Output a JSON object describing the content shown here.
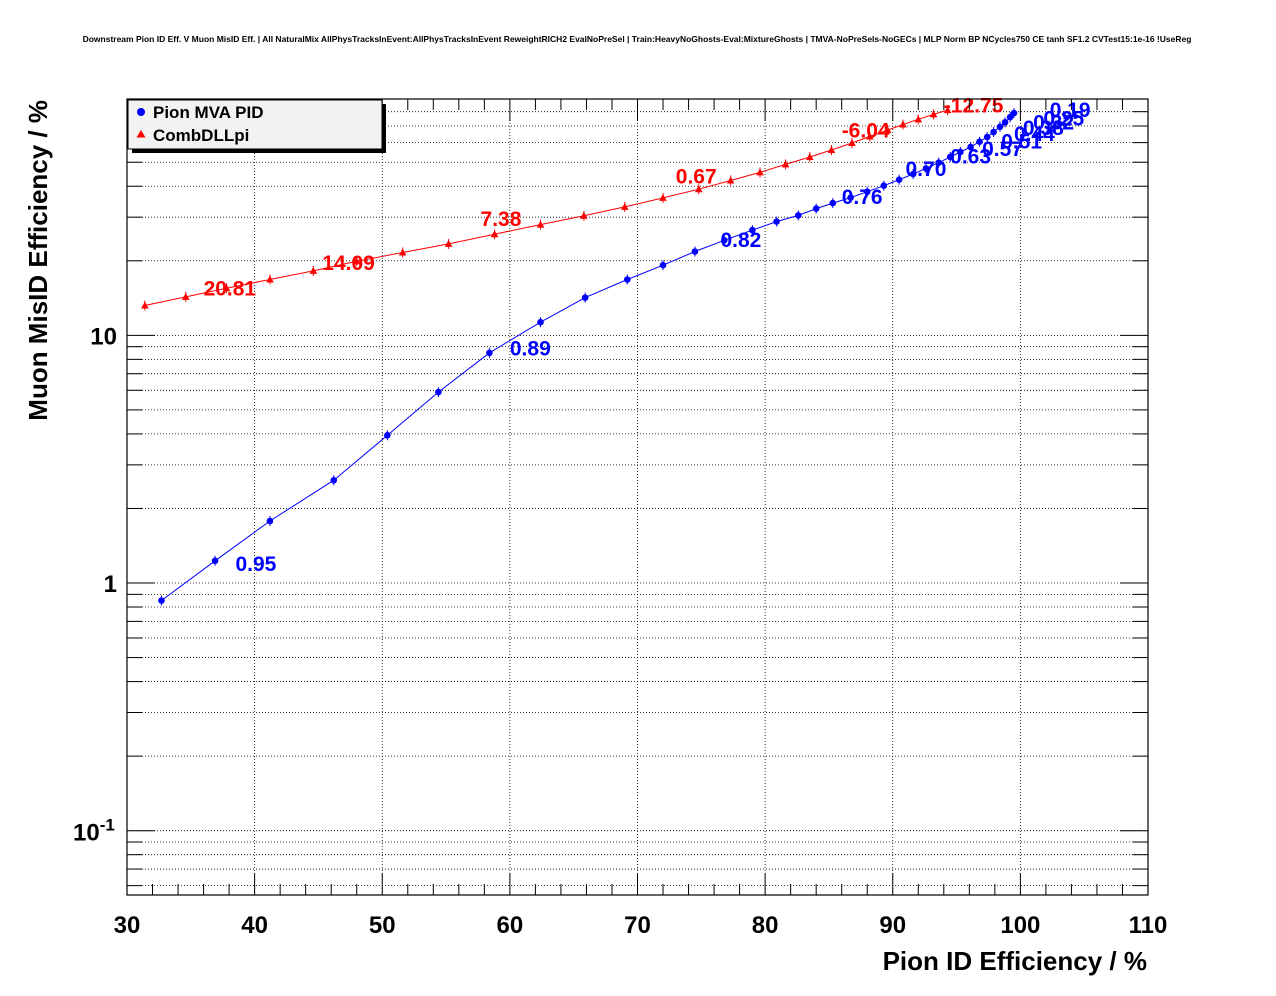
{
  "chart_data": {
    "type": "line",
    "title": "Downstream Pion ID Eff. V Muon MisID Eff. | All NaturalMix AllPhysTracksInEvent:AllPhysTracksInEvent ReweightRICH2 EvalNoPreSel | Train:HeavyNoGhosts-Eval:MixtureGhosts | TMVA-NoPreSels-NoGECs | MLP Norm BP NCycles750 CE tanh SF1.2 CVTest15:1e-16 !UseReg",
    "xlabel": "Pion ID Efficiency / %",
    "ylabel": "Muon MisID Efficiency / %",
    "xlim": [
      30,
      110
    ],
    "ylim": [
      0.055,
      90
    ],
    "yscale": "log",
    "grid": true,
    "legend_position": "top-left",
    "x_ticks": [
      "30",
      "40",
      "50",
      "60",
      "70",
      "80",
      "90",
      "100",
      "110"
    ],
    "y_ticks": [
      {
        "value": 1,
        "label": "1"
      },
      {
        "value": 10,
        "label": "10"
      }
    ],
    "y_tick_exp": {
      "value": 0.1,
      "base": "10",
      "exp": "-1"
    },
    "series": [
      {
        "name": "Pion MVA PID",
        "color": "#0000ff",
        "marker": "circle",
        "points": [
          [
            32.7,
            0.85
          ],
          [
            36.9,
            1.23
          ],
          [
            41.2,
            1.78
          ],
          [
            46.2,
            2.6
          ],
          [
            50.4,
            3.95
          ],
          [
            54.4,
            5.9
          ],
          [
            58.4,
            8.5
          ],
          [
            62.4,
            11.3
          ],
          [
            65.9,
            14.2
          ],
          [
            69.2,
            16.8
          ],
          [
            72.0,
            19.2
          ],
          [
            74.5,
            21.8
          ],
          [
            76.8,
            24.2
          ],
          [
            79.0,
            26.6
          ],
          [
            80.9,
            28.8
          ],
          [
            82.6,
            30.5
          ],
          [
            84.0,
            32.5
          ],
          [
            85.3,
            34.2
          ],
          [
            86.7,
            36.0
          ],
          [
            88.0,
            38.0
          ],
          [
            89.3,
            40.2
          ],
          [
            90.5,
            42.5
          ],
          [
            91.6,
            44.8
          ],
          [
            92.6,
            47.2
          ],
          [
            93.6,
            49.8
          ],
          [
            94.5,
            52.5
          ],
          [
            95.3,
            55.0
          ],
          [
            96.1,
            57.6
          ],
          [
            96.8,
            60.5
          ],
          [
            97.4,
            63.2
          ],
          [
            97.9,
            66.2
          ],
          [
            98.4,
            69.5
          ],
          [
            98.8,
            72.5
          ],
          [
            99.2,
            76.0
          ],
          [
            99.5,
            79.0
          ]
        ],
        "labels": [
          {
            "x": 38.5,
            "y": 1.12,
            "text": "0.95"
          },
          {
            "x": 60.0,
            "y": 8.3,
            "text": "0.89"
          },
          {
            "x": 76.5,
            "y": 22.7,
            "text": "0.82"
          },
          {
            "x": 86.0,
            "y": 33.9,
            "text": "0.76"
          },
          {
            "x": 91.0,
            "y": 44.0,
            "text": "0.70"
          },
          {
            "x": 94.5,
            "y": 49.5,
            "text": "0.63"
          },
          {
            "x": 97.0,
            "y": 53.0,
            "text": "0.57"
          },
          {
            "x": 98.5,
            "y": 56.8,
            "text": "0.51"
          },
          {
            "x": 99.5,
            "y": 61.0,
            "text": "0.44"
          },
          {
            "x": 100.2,
            "y": 64.5,
            "text": "0.38"
          },
          {
            "x": 101.0,
            "y": 67.8,
            "text": "0.32"
          },
          {
            "x": 101.8,
            "y": 70.5,
            "text": "0.25"
          },
          {
            "x": 102.3,
            "y": 76.0,
            "text": "0.19"
          }
        ]
      },
      {
        "name": "CombDLLpi",
        "color": "#ff0000",
        "marker": "triangle",
        "points": [
          [
            31.4,
            13.2
          ],
          [
            34.6,
            14.3
          ],
          [
            37.8,
            15.5
          ],
          [
            41.2,
            16.8
          ],
          [
            44.6,
            18.2
          ],
          [
            48.0,
            19.9
          ],
          [
            51.6,
            21.6
          ],
          [
            55.2,
            23.4
          ],
          [
            58.8,
            25.6
          ],
          [
            62.4,
            28.0
          ],
          [
            65.8,
            30.4
          ],
          [
            69.0,
            33.0
          ],
          [
            72.0,
            35.9
          ],
          [
            74.8,
            38.9
          ],
          [
            77.3,
            42.2
          ],
          [
            79.6,
            45.5
          ],
          [
            81.6,
            49.0
          ],
          [
            83.5,
            52.5
          ],
          [
            85.2,
            56.0
          ],
          [
            86.8,
            59.8
          ],
          [
            88.2,
            63.5
          ],
          [
            89.6,
            67.4
          ],
          [
            90.8,
            71.0
          ],
          [
            92.0,
            74.5
          ],
          [
            93.2,
            78.0
          ],
          [
            94.3,
            81.2
          ]
        ],
        "labels": [
          {
            "x": 36.0,
            "y": 14.5,
            "text": "20.81"
          },
          {
            "x": 45.3,
            "y": 18.4,
            "text": "14.09"
          },
          {
            "x": 57.7,
            "y": 27.7,
            "text": "7.38"
          },
          {
            "x": 73.0,
            "y": 41.1,
            "text": "0.67"
          },
          {
            "x": 86.0,
            "y": 63.0,
            "text": "-6.04"
          },
          {
            "x": 94.0,
            "y": 79.5,
            "text": "-12.75"
          }
        ]
      }
    ]
  }
}
